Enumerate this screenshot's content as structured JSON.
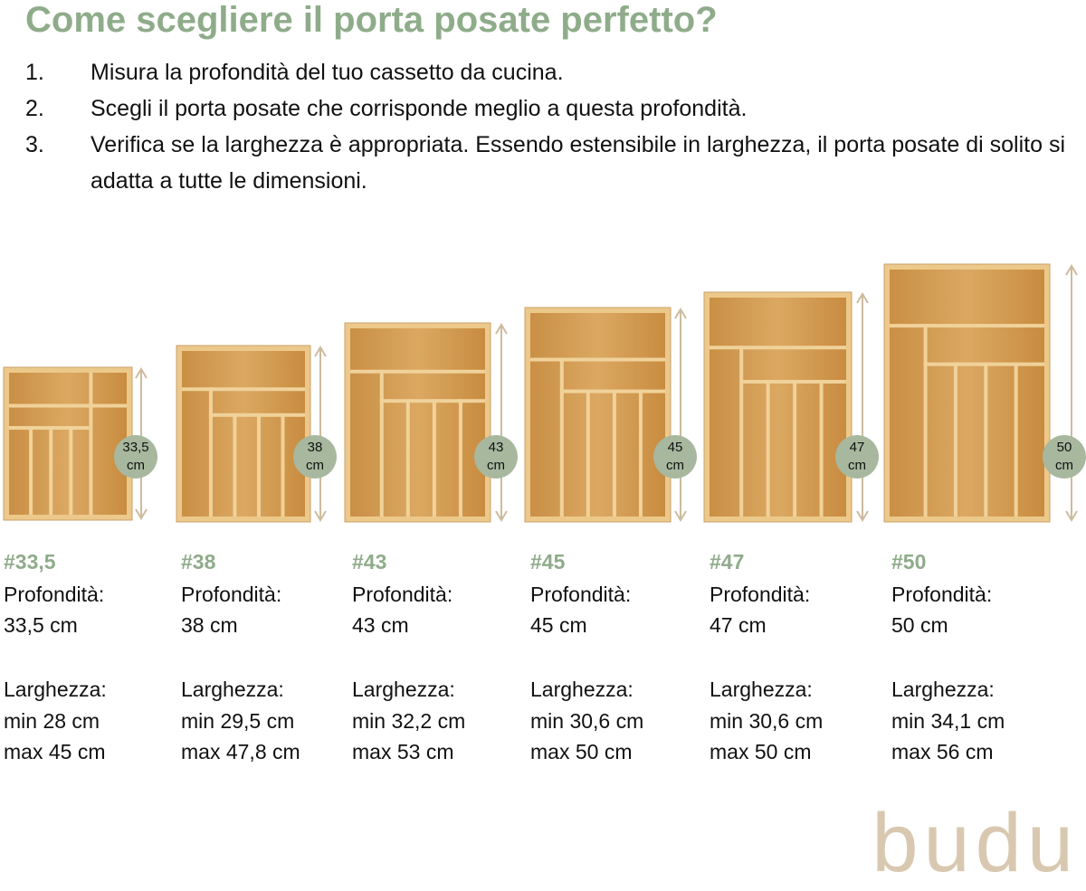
{
  "title": "Come scegliere il porta posate perfetto?",
  "steps": [
    {
      "number": "1.",
      "text": "Misura la profondità del tuo cassetto da cucina."
    },
    {
      "number": "2.",
      "text": "Scegli il porta posate che corrisponde meglio a questa profondità."
    },
    {
      "number": "3.",
      "text": "Verifica se la larghezza è appropriata. Essendo estensibile in larghezza, il porta posate di solito si adatta a tutte le dimensioni."
    }
  ],
  "products": [
    {
      "badge": [
        "33,5",
        "cm"
      ],
      "code": "#33,5",
      "depth_label": "Profondità:",
      "depth": "33,5 cm",
      "width_label": "Larghezza:",
      "width_min": "min 28 cm",
      "width_max": "max 45 cm"
    },
    {
      "badge": [
        "38",
        "cm"
      ],
      "code": "#38",
      "depth_label": "Profondità:",
      "depth": "38 cm",
      "width_label": "Larghezza:",
      "width_min": "min 29,5 cm",
      "width_max": "max 47,8 cm"
    },
    {
      "badge": [
        "43",
        "cm"
      ],
      "code": "#43",
      "depth_label": "Profondità:",
      "depth": "43 cm",
      "width_label": "Larghezza:",
      "width_min": "min 32,2 cm",
      "width_max": "max 53 cm"
    },
    {
      "badge": [
        "45",
        "cm"
      ],
      "code": "#45",
      "depth_label": "Profondità:",
      "depth": "45 cm",
      "width_label": "Larghezza:",
      "width_min": "min 30,6 cm",
      "width_max": "max 50 cm"
    },
    {
      "badge": [
        "47",
        "cm"
      ],
      "code": "#47",
      "depth_label": "Profondità:",
      "depth": "47 cm",
      "width_label": "Larghezza:",
      "width_min": "min 30,6 cm",
      "width_max": "max 50 cm"
    },
    {
      "badge": [
        "50",
        "cm"
      ],
      "code": "#50",
      "depth_label": "Profondità:",
      "depth": "50 cm",
      "width_label": "Larghezza:",
      "width_min": "min 34,1 cm",
      "width_max": "max 56 cm"
    }
  ],
  "brand": "budu"
}
